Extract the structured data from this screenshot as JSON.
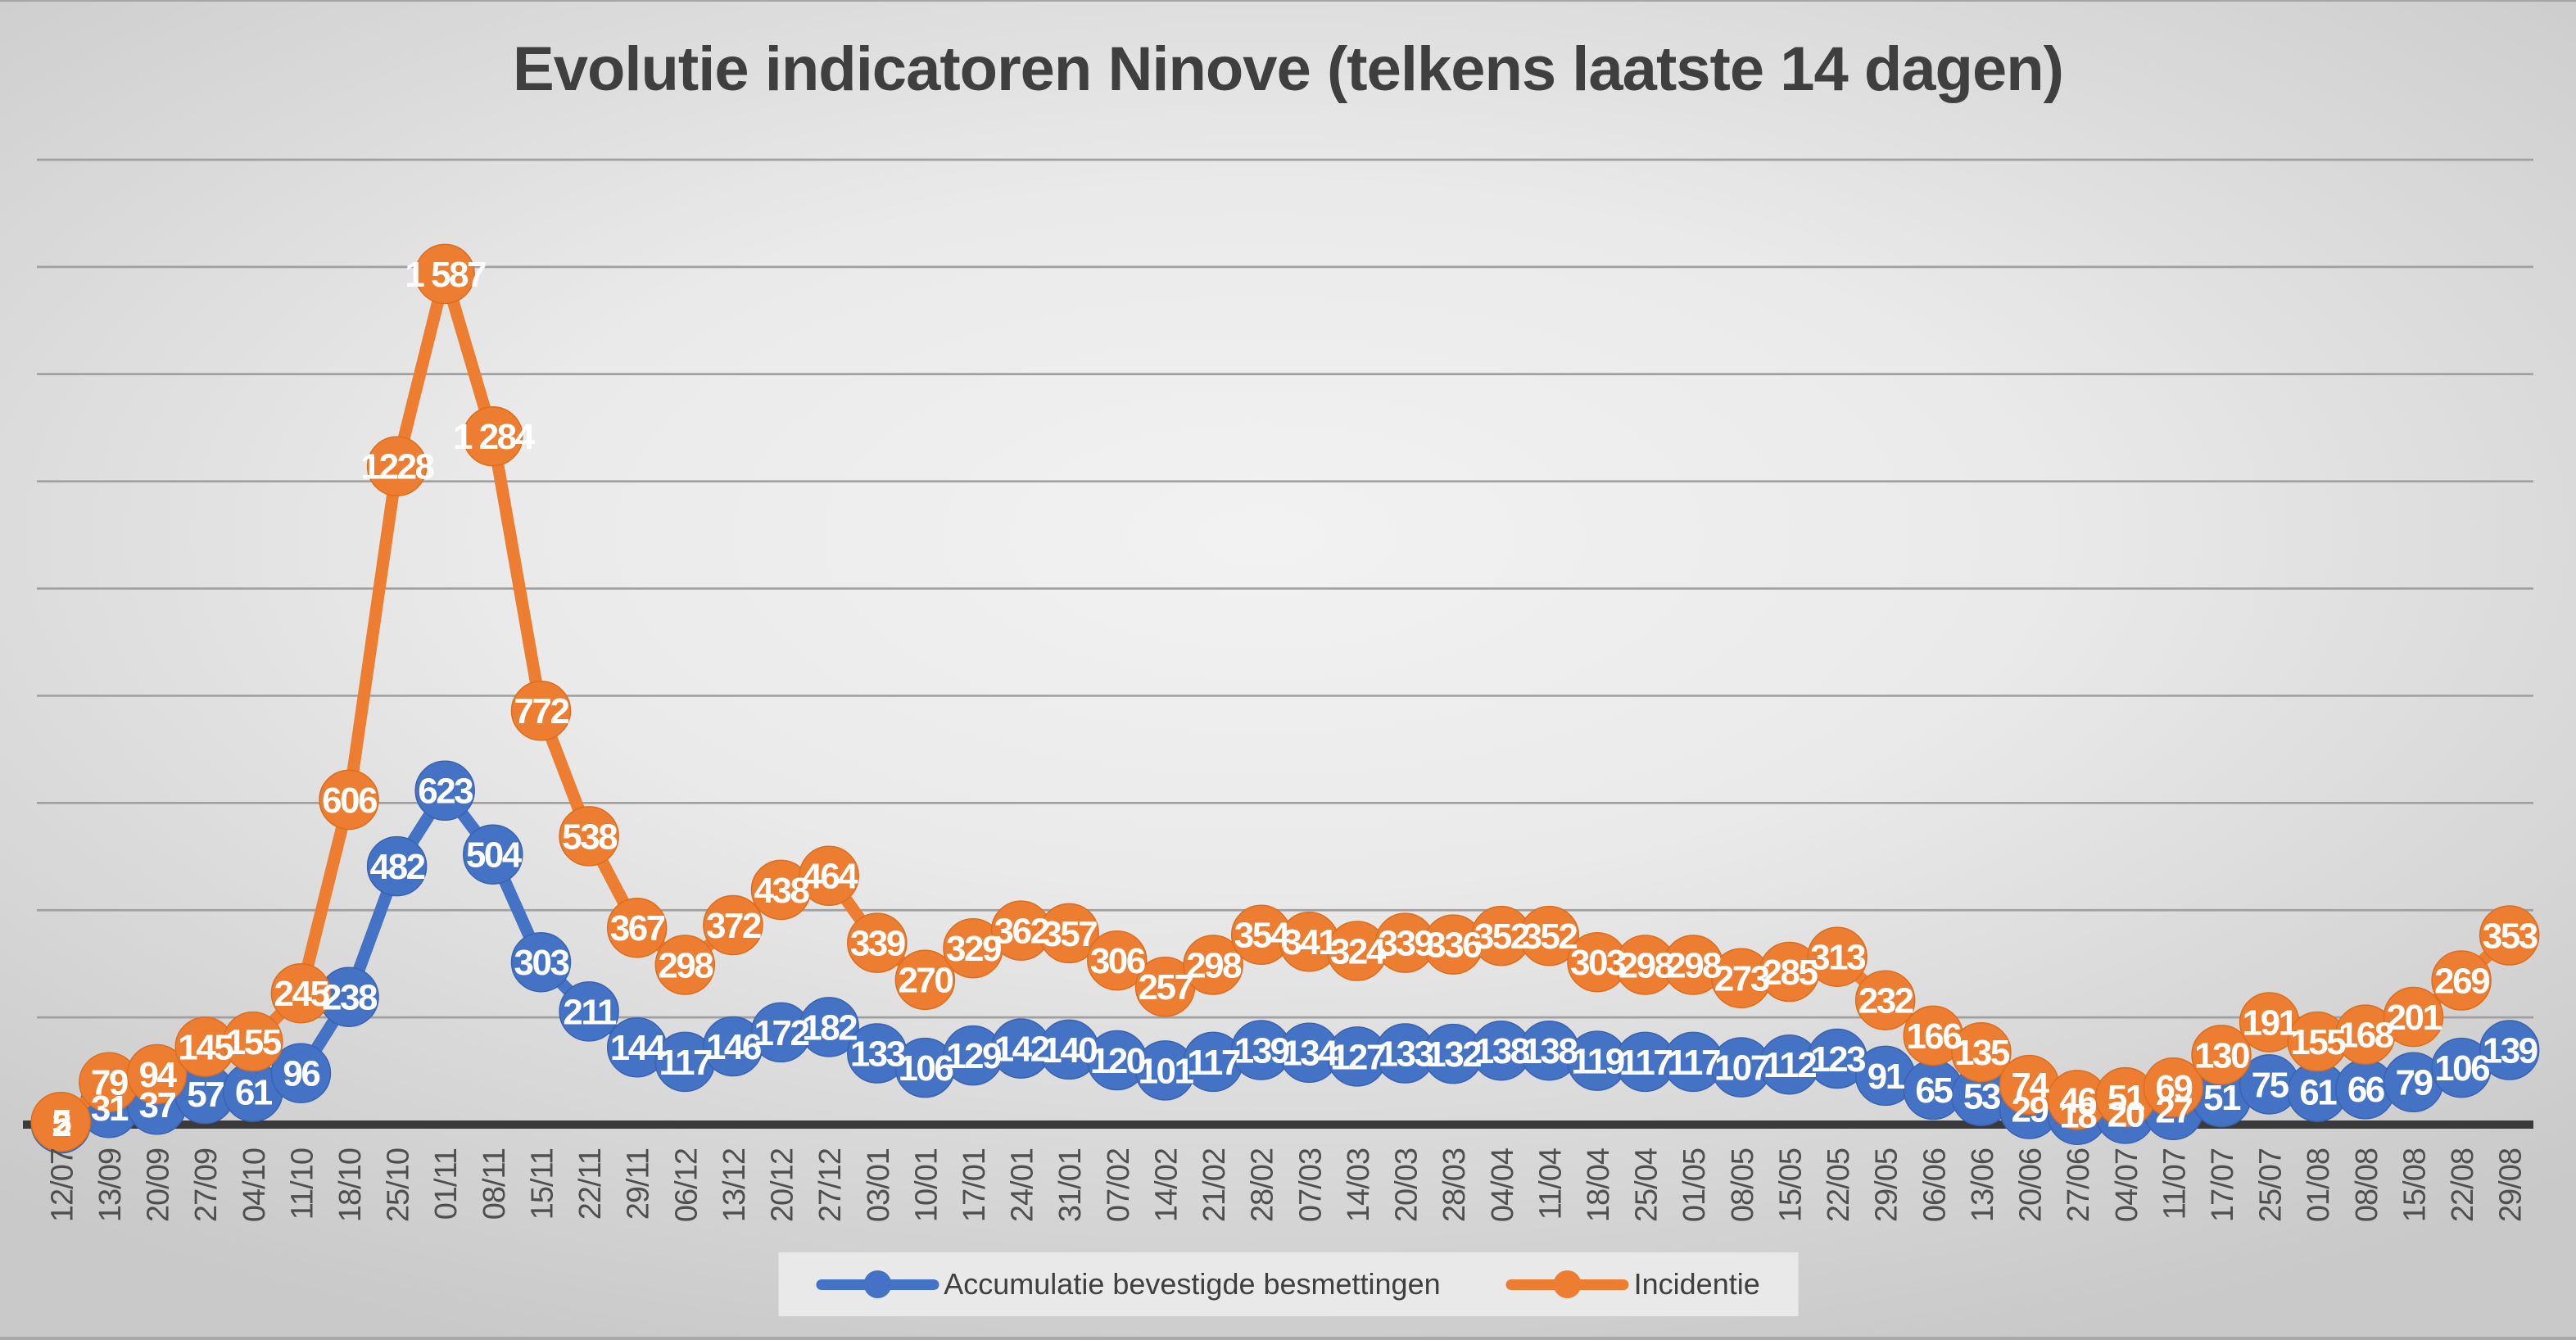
{
  "chart_data": {
    "type": "line",
    "title": "Evolutie indicatoren Ninove (telkens laatste 14 dagen)",
    "categories": [
      "12/07",
      "13/09",
      "20/09",
      "27/09",
      "04/10",
      "11/10",
      "18/10",
      "25/10",
      "01/11",
      "08/11",
      "15/11",
      "22/11",
      "29/11",
      "06/12",
      "13/12",
      "20/12",
      "27/12",
      "03/01",
      "10/01",
      "17/01",
      "24/01",
      "31/01",
      "07/02",
      "14/02",
      "21/02",
      "28/02",
      "07/03",
      "14/03",
      "20/03",
      "28/03",
      "04/04",
      "11/04",
      "18/04",
      "25/04",
      "01/05",
      "08/05",
      "15/05",
      "22/05",
      "29/05",
      "06/06",
      "13/06",
      "20/06",
      "27/06",
      "04/07",
      "11/07",
      "17/07",
      "25/07",
      "01/08",
      "08/08",
      "15/08",
      "22/08",
      "29/08"
    ],
    "series": [
      {
        "name": "Accumulatie bevestigde besmettingen",
        "color": "#4472C4",
        "edge_color": "#3A62B0",
        "values": [
          2,
          31,
          37,
          57,
          61,
          96,
          238,
          482,
          623,
          504,
          303,
          211,
          144,
          117,
          146,
          172,
          182,
          133,
          106,
          129,
          142,
          140,
          120,
          101,
          117,
          139,
          134,
          127,
          133,
          132,
          138,
          138,
          119,
          117,
          117,
          107,
          112,
          123,
          91,
          65,
          53,
          29,
          18,
          20,
          27,
          51,
          75,
          61,
          66,
          79,
          106,
          139
        ],
        "labels": [
          "2",
          "31",
          "37",
          "57",
          "61",
          "96",
          "238",
          "482",
          "623",
          "504",
          "303",
          "211",
          "144",
          "117",
          "146",
          "172",
          "182",
          "133",
          "106",
          "129",
          "142",
          "140",
          "120",
          "101",
          "117",
          "139",
          "134",
          "127",
          "133",
          "132",
          "138",
          "138",
          "119",
          "117",
          "117",
          "107",
          "112",
          "123",
          "91",
          "65",
          "53",
          "29",
          "18",
          "20",
          "27",
          "51",
          "75",
          "61",
          "66",
          "79",
          "106",
          "139"
        ]
      },
      {
        "name": "Incidentie",
        "color": "#ED7D31",
        "edge_color": "#DC6E1F",
        "values": [
          5,
          79,
          94,
          145,
          155,
          245,
          606,
          1228,
          1587,
          1284,
          772,
          538,
          367,
          298,
          372,
          438,
          464,
          339,
          270,
          329,
          362,
          357,
          306,
          257,
          298,
          354,
          341,
          324,
          339,
          336,
          352,
          352,
          303,
          298,
          298,
          273,
          285,
          313,
          232,
          166,
          135,
          74,
          46,
          51,
          69,
          130,
          191,
          155,
          168,
          201,
          269,
          353
        ],
        "labels": [
          "5",
          "79",
          "94",
          "145",
          "155",
          "245",
          "606",
          "1228",
          "1 587",
          "1 284",
          "772",
          "538",
          "367",
          "298",
          "372",
          "438",
          "464",
          "339",
          "270",
          "329",
          "362",
          "357",
          "306",
          "257",
          "298",
          "354",
          "341",
          "324",
          "339",
          "336",
          "352",
          "352",
          "303",
          "298",
          "298",
          "273",
          "285",
          "313",
          "232",
          "166",
          "135",
          "74",
          "46",
          "51",
          "69",
          "130",
          "191",
          "155",
          "168",
          "201",
          "269",
          "353"
        ]
      }
    ],
    "ylim": [
      0,
      1800
    ],
    "gridline_step": 200,
    "grid": true,
    "legend_position": "bottom",
    "data_label_color": "#FFFFFF",
    "gridline_color": "#A0A0A0",
    "axis_color": "#3A3A3A",
    "tick_label_color": "#4F4F4F"
  }
}
